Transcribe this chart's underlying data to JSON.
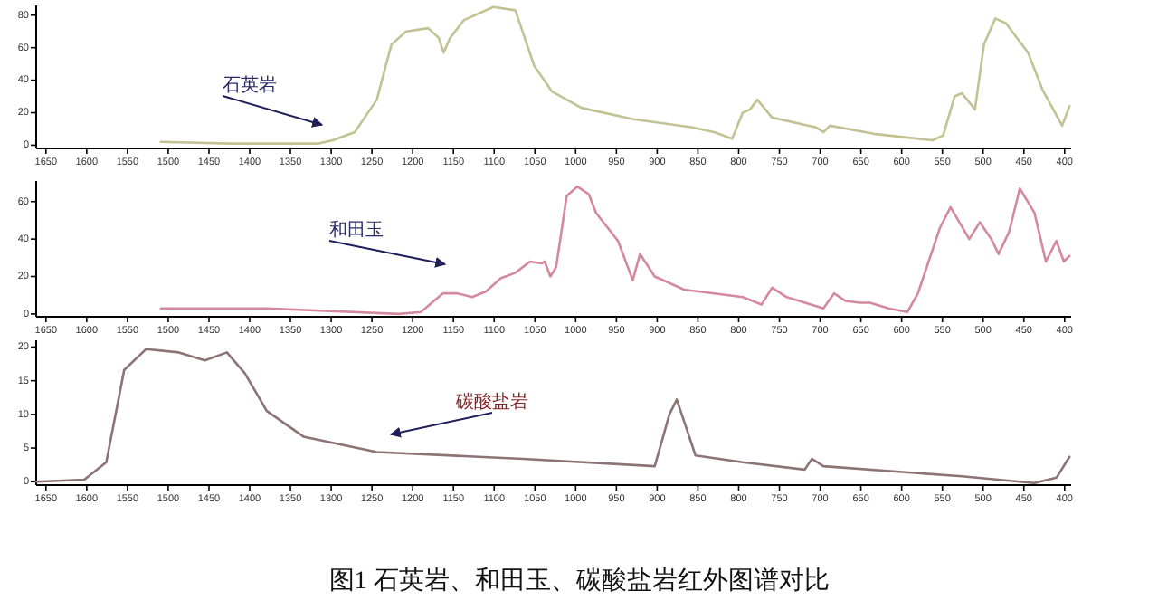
{
  "chart_data": [
    {
      "type": "line",
      "x": [
        1509,
        1424,
        1316,
        1298,
        1271,
        1244,
        1226,
        1208,
        1181,
        1168,
        1162,
        1154,
        1137,
        1101,
        1074,
        1051,
        1029,
        993,
        929,
        857,
        830,
        808,
        795,
        786,
        777,
        759,
        705,
        696,
        688,
        634,
        562,
        549,
        535,
        526,
        510,
        499,
        485,
        472,
        445,
        427,
        403,
        394
      ],
      "series": [
        {
          "color": "#c2c294",
          "values": [
            2,
            1,
            1,
            3,
            8,
            28,
            62,
            70,
            72,
            66,
            57,
            66,
            77,
            85,
            83,
            49,
            33,
            23,
            16,
            11,
            8,
            4,
            20,
            22,
            28,
            17,
            11,
            8,
            12,
            7,
            3,
            6,
            30,
            32,
            22,
            62,
            78,
            75,
            57,
            34,
            12,
            24
          ]
        }
      ],
      "xlim": [
        1662,
        392
      ],
      "xticks": [
        1650,
        1600,
        1550,
        1500,
        1450,
        1400,
        1350,
        1300,
        1250,
        1200,
        1150,
        1100,
        1050,
        1000,
        950,
        900,
        850,
        800,
        750,
        700,
        650,
        600,
        550,
        500,
        450,
        400
      ],
      "ylim": [
        -2,
        86
      ],
      "yticks": [
        0,
        20,
        40,
        60,
        80
      ],
      "annotations": [
        "石英岩"
      ]
    },
    {
      "type": "line",
      "x": [
        1509,
        1379,
        1217,
        1190,
        1163,
        1145,
        1127,
        1110,
        1092,
        1074,
        1056,
        1042,
        1038,
        1031,
        1024,
        1011,
        998,
        984,
        975,
        948,
        930,
        921,
        903,
        867,
        795,
        772,
        759,
        741,
        696,
        683,
        669,
        651,
        639,
        616,
        593,
        580,
        553,
        540,
        517,
        504,
        490,
        481,
        468,
        455,
        437,
        423,
        410,
        401,
        394
      ],
      "series": [
        {
          "color": "#d48a9c",
          "values": [
            3,
            3,
            0,
            1,
            11,
            11,
            9,
            12,
            19,
            22,
            28,
            27,
            28,
            20,
            25,
            63,
            68,
            64,
            54,
            39,
            18,
            32,
            20,
            13,
            9,
            5,
            14,
            9,
            3,
            11,
            7,
            6,
            6,
            3,
            1,
            11,
            46,
            57,
            40,
            49,
            40,
            32,
            44,
            67,
            54,
            28,
            39,
            28,
            31
          ]
        }
      ],
      "xlim": [
        1662,
        392
      ],
      "xticks": [
        1650,
        1600,
        1550,
        1500,
        1450,
        1400,
        1350,
        1300,
        1250,
        1200,
        1150,
        1100,
        1050,
        1000,
        950,
        900,
        850,
        800,
        750,
        700,
        650,
        600,
        550,
        500,
        450,
        400
      ],
      "ylim": [
        -1.5,
        71
      ],
      "yticks": [
        0,
        20,
        40,
        60
      ],
      "annotations": [
        "和田玉"
      ]
    },
    {
      "type": "line",
      "x": [
        1662,
        1603,
        1576,
        1554,
        1527,
        1487,
        1455,
        1428,
        1406,
        1379,
        1334,
        1244,
        1065,
        903,
        885,
        876,
        867,
        853,
        795,
        719,
        710,
        696,
        526,
        437,
        410,
        394
      ],
      "series": [
        {
          "color": "#8c7474",
          "values": [
            0,
            0.3,
            2.9,
            16.6,
            19.7,
            19.2,
            18,
            19.2,
            16.1,
            10.5,
            6.7,
            4.4,
            3.4,
            2.3,
            10,
            12.2,
            9,
            3.9,
            2.9,
            1.8,
            3.4,
            2.3,
            0.8,
            -0.2,
            0.6,
            3.7
          ]
        }
      ],
      "xlim": [
        1662,
        392
      ],
      "xticks": [
        1650,
        1600,
        1550,
        1500,
        1450,
        1400,
        1350,
        1300,
        1250,
        1200,
        1150,
        1100,
        1050,
        1000,
        950,
        900,
        850,
        800,
        750,
        700,
        650,
        600,
        550,
        500,
        450,
        400
      ],
      "ylim": [
        -0.5,
        21
      ],
      "yticks": [
        0,
        5,
        10,
        15,
        20
      ],
      "annotations": [
        "碳酸盐岩",
        "图1 石英岩、和田玉、碳酸盐岩红外图谱对比"
      ]
    }
  ]
}
